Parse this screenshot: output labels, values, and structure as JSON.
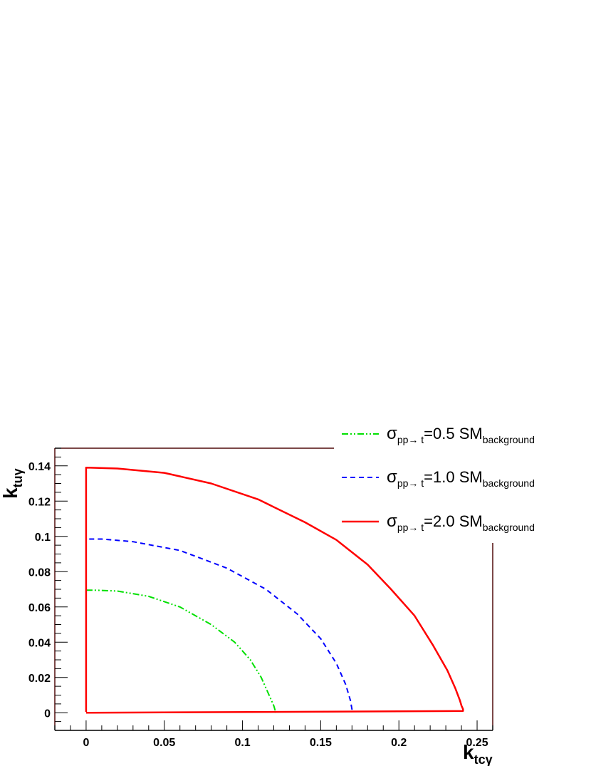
{
  "chart_data": {
    "type": "line",
    "xlabel": "k",
    "xlabel_sub": "tcγ",
    "ylabel": "k",
    "ylabel_sub": "tuγ",
    "xlim": [
      -0.02,
      0.26
    ],
    "ylim": [
      -0.01,
      0.15
    ],
    "x_ticks": [
      0,
      0.05,
      0.1,
      0.15,
      0.2,
      0.25
    ],
    "x_tick_labels": [
      "0",
      "0.05",
      "0.1",
      "0.15",
      "0.2",
      "0.25"
    ],
    "y_ticks": [
      0,
      0.02,
      0.04,
      0.06,
      0.08,
      0.1,
      0.12,
      0.14
    ],
    "y_tick_labels": [
      "0",
      "0.02",
      "0.04",
      "0.06",
      "0.08",
      "0.1",
      "0.12",
      "0.14"
    ],
    "grid": false,
    "legend_position": "top-right",
    "series": [
      {
        "name": "σpp→ t=0.5 SMbackground",
        "label": {
          "sigma": "σ",
          "sub": "pp→ t",
          "mid": "=0.5 SM",
          "sub2": "background"
        },
        "color": "#00e000",
        "style": "dash-dot-dot",
        "x": [
          0,
          0.005,
          0.02,
          0.04,
          0.06,
          0.08,
          0.095,
          0.105,
          0.112,
          0.117,
          0.12,
          0.121,
          0.121
        ],
        "y": [
          0.0695,
          0.0695,
          0.069,
          0.066,
          0.06,
          0.05,
          0.04,
          0.03,
          0.02,
          0.01,
          0.004,
          0.001,
          0
        ]
      },
      {
        "name": "σpp→ t=1.0 SMbackground",
        "label": {
          "sigma": "σ",
          "sub": "pp→ t",
          "mid": "=1.0 SM",
          "sub2": "background"
        },
        "color": "#0000ff",
        "style": "dashed",
        "x": [
          0.002,
          0.01,
          0.03,
          0.06,
          0.09,
          0.115,
          0.135,
          0.15,
          0.16,
          0.166,
          0.169,
          0.17,
          0.17
        ],
        "y": [
          0.0985,
          0.0985,
          0.097,
          0.092,
          0.082,
          0.07,
          0.056,
          0.042,
          0.028,
          0.016,
          0.007,
          0.002,
          0.0035
        ]
      },
      {
        "name": "σpp→ t=2.0 SMbackground",
        "label": {
          "sigma": "σ",
          "sub": "pp→ t",
          "mid": "=2.0 SM",
          "sub2": "background"
        },
        "color": "#ff0000",
        "style": "solid",
        "x": [
          0,
          0,
          0.02,
          0.05,
          0.08,
          0.11,
          0.14,
          0.16,
          0.18,
          0.195,
          0.21,
          0.222,
          0.231,
          0.236,
          0.239,
          0.24,
          0.241,
          0.241,
          0
        ],
        "y": [
          0.0005,
          0.139,
          0.1385,
          0.136,
          0.13,
          0.121,
          0.108,
          0.098,
          0.084,
          0.07,
          0.055,
          0.038,
          0.024,
          0.014,
          0.007,
          0.004,
          0.002,
          0.001,
          0
        ]
      }
    ]
  }
}
